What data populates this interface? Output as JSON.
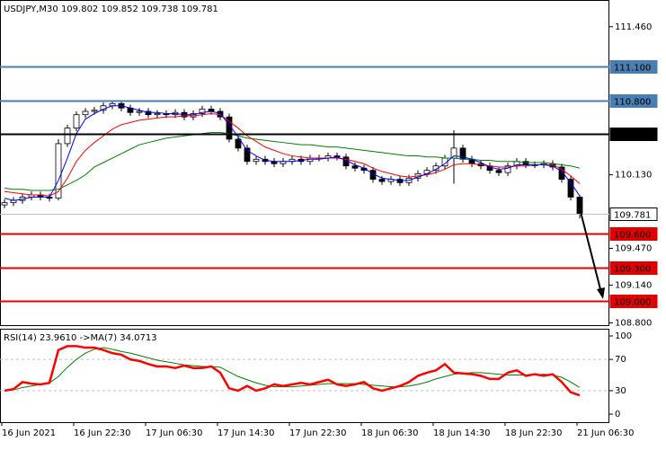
{
  "chart_data": [
    {
      "type": "candlestick",
      "title": "USDJPY,M30  109.802 109.852 109.738 109.781",
      "categories": [
        "16 Jun 2021",
        null,
        null,
        null,
        null,
        null,
        null,
        null,
        "16 Jun 22:30",
        null,
        null,
        null,
        null,
        null,
        null,
        null,
        "17 Jun 06:30",
        null,
        null,
        null,
        null,
        null,
        null,
        null,
        "17 Jun 14:30",
        null,
        null,
        null,
        null,
        null,
        null,
        null,
        "17 Jun 22:30",
        null,
        null,
        null,
        null,
        null,
        null,
        null,
        "18 Jun 06:30",
        null,
        null,
        null,
        null,
        null,
        null,
        null,
        "18 Jun 14:30",
        null,
        null,
        null,
        null,
        null,
        null,
        null,
        "18 Jun 22:30",
        null,
        null,
        null,
        null,
        null,
        null,
        null,
        "21 Jun 06:30"
      ],
      "open": [
        109.86,
        109.88,
        109.9,
        109.93,
        109.95,
        109.93,
        109.92,
        110.41,
        110.55,
        110.67,
        110.7,
        110.71,
        110.75,
        110.77,
        110.73,
        110.69,
        110.7,
        110.67,
        110.68,
        110.67,
        110.69,
        110.65,
        110.68,
        110.72,
        110.7,
        110.65,
        110.45,
        110.37,
        110.25,
        110.27,
        110.25,
        110.23,
        110.25,
        110.27,
        110.25,
        110.28,
        110.28,
        110.3,
        110.29,
        110.21,
        110.19,
        110.17,
        110.09,
        110.07,
        110.09,
        110.06,
        110.1,
        110.14,
        110.17,
        110.21,
        110.28,
        110.37,
        110.27,
        110.23,
        110.21,
        110.17,
        110.15,
        110.21,
        110.25,
        110.22,
        110.22,
        110.23,
        110.2,
        110.09,
        109.93
      ],
      "high": [
        109.91,
        109.93,
        109.96,
        109.98,
        109.98,
        109.96,
        110.45,
        110.58,
        110.7,
        110.73,
        110.74,
        110.78,
        110.8,
        110.8,
        110.76,
        110.73,
        110.73,
        110.71,
        110.71,
        110.72,
        110.72,
        110.71,
        110.75,
        110.75,
        110.73,
        110.68,
        110.48,
        110.4,
        110.3,
        110.3,
        110.28,
        110.28,
        110.3,
        110.3,
        110.31,
        110.31,
        110.33,
        110.33,
        110.32,
        110.24,
        110.22,
        110.2,
        110.12,
        110.12,
        110.12,
        110.13,
        110.17,
        110.2,
        110.24,
        110.31,
        110.53,
        110.4,
        110.3,
        110.26,
        110.24,
        110.2,
        110.24,
        110.28,
        110.28,
        110.25,
        110.26,
        110.26,
        110.23,
        110.12,
        109.95
      ],
      "low": [
        109.83,
        109.85,
        109.87,
        109.9,
        109.9,
        109.89,
        109.9,
        110.38,
        110.52,
        110.64,
        110.67,
        110.68,
        110.72,
        110.7,
        110.66,
        110.66,
        110.64,
        110.64,
        110.64,
        110.64,
        110.62,
        110.62,
        110.65,
        110.67,
        110.62,
        110.42,
        110.34,
        110.22,
        110.22,
        110.22,
        110.2,
        110.2,
        110.22,
        110.22,
        110.22,
        110.25,
        110.25,
        110.26,
        110.18,
        110.16,
        110.14,
        110.06,
        110.04,
        110.04,
        110.03,
        110.03,
        110.07,
        110.11,
        110.14,
        110.18,
        110.05,
        110.24,
        110.2,
        110.18,
        110.14,
        110.12,
        110.12,
        110.18,
        110.19,
        110.19,
        110.19,
        110.17,
        110.06,
        109.9,
        109.738
      ],
      "close": [
        109.88,
        109.9,
        109.93,
        109.95,
        109.93,
        109.92,
        110.41,
        110.55,
        110.67,
        110.7,
        110.71,
        110.75,
        110.77,
        110.73,
        110.69,
        110.7,
        110.67,
        110.68,
        110.67,
        110.69,
        110.65,
        110.68,
        110.72,
        110.7,
        110.65,
        110.45,
        110.37,
        110.25,
        110.27,
        110.25,
        110.23,
        110.25,
        110.27,
        110.25,
        110.28,
        110.28,
        110.3,
        110.29,
        110.21,
        110.19,
        110.17,
        110.09,
        110.07,
        110.09,
        110.06,
        110.1,
        110.14,
        110.17,
        110.21,
        110.28,
        110.37,
        110.27,
        110.23,
        110.21,
        110.17,
        110.15,
        110.21,
        110.25,
        110.22,
        110.22,
        110.23,
        110.2,
        110.09,
        109.93,
        109.781
      ],
      "up_color": "#ffffff",
      "down_color": "#000000",
      "lines": [
        {
          "color": "#008000",
          "values": [
            110.01,
            110.0,
            110.0,
            109.99,
            109.99,
            109.99,
            110.0,
            110.04,
            110.08,
            110.13,
            110.2,
            110.24,
            110.28,
            110.32,
            110.36,
            110.4,
            110.42,
            110.44,
            110.46,
            110.47,
            110.48,
            110.49,
            110.5,
            110.51,
            110.51,
            110.5,
            110.48,
            110.46,
            110.45,
            110.44,
            110.43,
            110.42,
            110.41,
            110.4,
            110.4,
            110.39,
            110.38,
            110.38,
            110.37,
            110.36,
            110.35,
            110.34,
            110.33,
            110.32,
            110.31,
            110.3,
            110.3,
            110.29,
            110.29,
            110.28,
            110.28,
            110.27,
            110.27,
            110.26,
            110.26,
            110.25,
            110.25,
            110.25,
            110.24,
            110.24,
            110.24,
            110.23,
            110.22,
            110.21,
            110.19
          ]
        },
        {
          "color": "#ff0000",
          "values": [
            109.98,
            109.97,
            109.96,
            109.95,
            109.95,
            109.94,
            109.98,
            110.1,
            110.25,
            110.35,
            110.42,
            110.48,
            110.54,
            110.58,
            110.6,
            110.62,
            110.63,
            110.64,
            110.65,
            110.65,
            110.66,
            110.66,
            110.67,
            110.68,
            110.67,
            110.61,
            110.55,
            110.48,
            110.43,
            110.38,
            110.35,
            110.32,
            110.3,
            110.29,
            110.28,
            110.28,
            110.28,
            110.28,
            110.27,
            110.25,
            110.23,
            110.19,
            110.16,
            110.14,
            110.12,
            110.11,
            110.12,
            110.13,
            110.15,
            110.18,
            110.22,
            110.23,
            110.23,
            110.22,
            110.21,
            110.2,
            110.2,
            110.21,
            110.21,
            110.22,
            110.22,
            110.22,
            110.18,
            110.12,
            110.05
          ]
        },
        {
          "color": "#0000ff",
          "values": [
            109.92,
            109.9,
            109.91,
            109.93,
            109.93,
            109.93,
            110.08,
            110.28,
            110.5,
            110.63,
            110.68,
            110.72,
            110.75,
            110.75,
            110.73,
            110.71,
            110.69,
            110.69,
            110.68,
            110.68,
            110.67,
            110.67,
            110.69,
            110.7,
            110.68,
            110.58,
            110.47,
            110.35,
            110.3,
            110.26,
            110.25,
            110.25,
            110.25,
            110.26,
            110.27,
            110.27,
            110.28,
            110.29,
            110.26,
            110.22,
            110.19,
            110.14,
            110.1,
            110.09,
            110.08,
            110.08,
            110.11,
            110.14,
            110.18,
            110.23,
            110.3,
            110.29,
            110.27,
            110.24,
            110.2,
            110.18,
            110.19,
            110.22,
            110.22,
            110.22,
            110.22,
            110.21,
            110.16,
            110.06,
            109.94
          ]
        }
      ],
      "ylim": [
        108.78,
        111.7
      ],
      "yticks": [
        {
          "value": 111.46,
          "label": "111.460"
        },
        {
          "value": 110.13,
          "label": "110.130"
        },
        {
          "value": 109.47,
          "label": "109.470"
        },
        {
          "value": 109.14,
          "label": "109.140"
        },
        {
          "value": 108.8,
          "label": "108.800"
        }
      ],
      "levels": [
        {
          "value": 111.1,
          "label": "111.100",
          "color": "#4a7eb0"
        },
        {
          "value": 110.8,
          "label": "110.800",
          "color": "#4a7eb0"
        },
        {
          "value": 110.5,
          "label": "110.500",
          "color": "#000000"
        },
        {
          "value": 109.781,
          "label": "109.781",
          "color": "#c0c0c0"
        },
        {
          "value": 109.6,
          "label": "109.600",
          "color": "#e00000"
        },
        {
          "value": 109.3,
          "label": "109.300",
          "color": "#e00000"
        },
        {
          "value": 109.0,
          "label": "109.000",
          "color": "#e00000"
        }
      ]
    },
    {
      "type": "line",
      "title": "RSI(14) 23.9610 ->MA(7) 34.0713",
      "series": [
        {
          "color": "#ff0000",
          "values": [
            30,
            32,
            41,
            39,
            38,
            40,
            82,
            87,
            87,
            85,
            85,
            82,
            78,
            76,
            70,
            68,
            64,
            61,
            61,
            59,
            62,
            59,
            59,
            61,
            53,
            33,
            30,
            36,
            30,
            33,
            38,
            36,
            38,
            40,
            38,
            41,
            44,
            38,
            36,
            38,
            41,
            33,
            30,
            33,
            36,
            41,
            49,
            53,
            56,
            64,
            53,
            52,
            51,
            49,
            45,
            45,
            53,
            56,
            49,
            51,
            49,
            51,
            41,
            28,
            23.961
          ]
        },
        {
          "color": "#008000",
          "values": [
            30,
            31,
            34,
            36,
            38,
            40,
            48,
            60,
            70,
            78,
            83,
            85,
            83,
            80,
            78,
            75,
            72,
            69,
            67,
            65,
            63,
            62,
            61,
            61,
            60,
            54,
            48,
            44,
            40,
            37,
            35,
            35,
            35,
            36,
            37,
            38,
            39,
            39,
            39,
            39,
            38,
            37,
            36,
            35,
            35,
            36,
            38,
            41,
            45,
            48,
            51,
            52,
            53,
            53,
            52,
            51,
            50,
            50,
            50,
            50,
            51,
            50,
            47,
            41,
            34.0713
          ]
        }
      ],
      "ylim": [
        -10.3,
        109.2
      ],
      "yticks": [
        100,
        70,
        30,
        0
      ],
      "levels": [
        70,
        30
      ]
    }
  ]
}
